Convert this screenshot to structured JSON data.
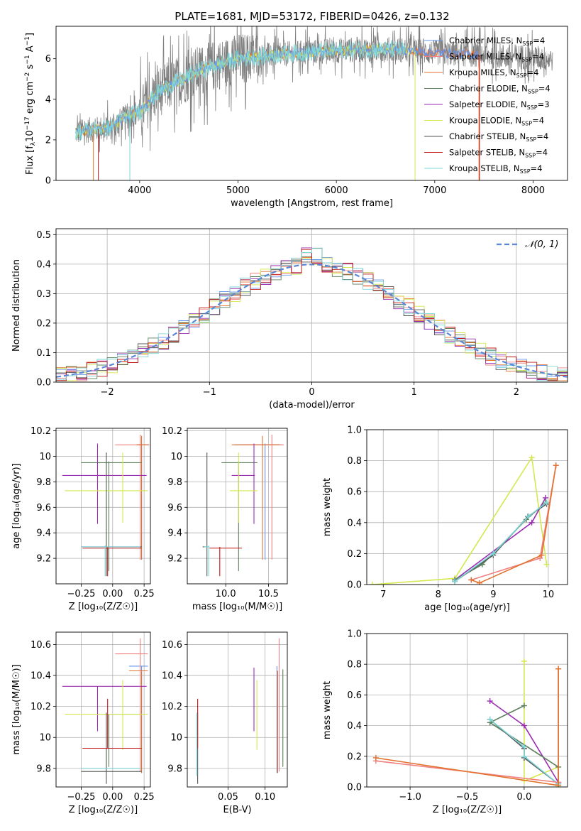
{
  "colors": {
    "chabrier_miles": "#6495ed",
    "salpeter_miles": "#f08080",
    "kroupa_miles": "#e2722e",
    "chabrier_elodie": "#5c7f5c",
    "salpeter_elodie": "#9b2db3",
    "kroupa_elodie": "#d4e84e",
    "chabrier_stelib": "#555555",
    "salpeter_stelib": "#c01818",
    "kroupa_stelib": "#7fd6d9",
    "data_grey": "#808080",
    "gauss": "#5b86d6"
  },
  "legend_models": [
    {
      "key": "chabrier_miles",
      "label": "Chabrier MILES, N",
      "sub": "SSP",
      "val": "=4"
    },
    {
      "key": "salpeter_miles",
      "label": "Salpeter MILES, N",
      "sub": "SSP",
      "val": "=4"
    },
    {
      "key": "kroupa_miles",
      "label": "Kroupa MILES, N",
      "sub": "SSP",
      "val": "=4"
    },
    {
      "key": "chabrier_elodie",
      "label": "Chabrier ELODIE, N",
      "sub": "SSP",
      "val": "=4"
    },
    {
      "key": "salpeter_elodie",
      "label": "Salpeter ELODIE, N",
      "sub": "SSP",
      "val": "=3"
    },
    {
      "key": "kroupa_elodie",
      "label": "Kroupa ELODIE, N",
      "sub": "SSP",
      "val": "=4"
    },
    {
      "key": "chabrier_stelib",
      "label": "Chabrier STELIB, N",
      "sub": "SSP",
      "val": "=4"
    },
    {
      "key": "salpeter_stelib",
      "label": "Salpeter STELIB, N",
      "sub": "SSP",
      "val": "=4"
    },
    {
      "key": "kroupa_stelib",
      "label": "Kroupa STELIB, N",
      "sub": "SSP",
      "val": "=4"
    }
  ],
  "chart_data": [
    {
      "id": "spectrum",
      "type": "line",
      "title": "PLATE=1681, MJD=53172, FIBERID=0426, z=0.132",
      "xlabel": "wavelength [Angstrom, rest frame]",
      "ylabel_parts": [
        "Flux [f",
        "λ",
        "10",
        "−17",
        " erg cm",
        "−2",
        " s",
        "−1",
        " A",
        "−1",
        "]"
      ],
      "xlim": [
        3150,
        8350
      ],
      "ylim": [
        0,
        7.6
      ],
      "xticks": [
        4000,
        5000,
        6000,
        7000,
        8000
      ],
      "yticks": [
        0,
        2,
        4,
        6
      ],
      "continuum": [
        [
          3350,
          2.35
        ],
        [
          3500,
          2.5
        ],
        [
          3700,
          2.6
        ],
        [
          3850,
          3.1
        ],
        [
          4000,
          3.4
        ],
        [
          4200,
          4.4
        ],
        [
          4400,
          4.9
        ],
        [
          4600,
          5.4
        ],
        [
          4800,
          5.7
        ],
        [
          5000,
          6.0
        ],
        [
          5400,
          6.2
        ],
        [
          5800,
          6.35
        ],
        [
          6200,
          6.45
        ],
        [
          6600,
          6.45
        ],
        [
          7000,
          6.3
        ],
        [
          7400,
          6.2
        ],
        [
          7800,
          6.1
        ],
        [
          8200,
          6.0
        ]
      ]
    },
    {
      "id": "residuals",
      "type": "histogram",
      "xlabel": "(data-model)/error",
      "ylabel": "Normed distribution",
      "xlim": [
        -2.5,
        2.5
      ],
      "ylim": [
        0,
        0.52
      ],
      "xticks": [
        -2,
        -1,
        0,
        1,
        2
      ],
      "xtick_labels": [
        "−2",
        "−1",
        "0",
        "1",
        "2"
      ],
      "yticks": [
        0,
        0.1,
        0.2,
        0.3,
        0.4,
        0.5
      ],
      "ytick_labels": [
        "0.0",
        "0.1",
        "0.2",
        "0.3",
        "0.4",
        "0.5"
      ],
      "legend": "𝒩(0, 1)"
    },
    {
      "id": "z_age",
      "type": "errorbar",
      "xlabel": "Z [log₁₀(Z/Z☉)]",
      "ylabel": "age  [log₁₀(age/yr)]",
      "xlim": [
        -0.45,
        0.3
      ],
      "ylim": [
        9.0,
        10.22
      ],
      "xticks": [
        -0.25,
        0.0,
        0.25
      ],
      "xtick_labels": [
        "−0.25",
        "0.00",
        "0.25"
      ],
      "yticks": [
        9.2,
        9.4,
        9.6,
        9.8,
        10.0,
        10.2
      ],
      "series": [
        {
          "key": "chabrier_miles",
          "x": 0.23,
          "y": 10.09,
          "x_err": [
            0.04,
            0.06
          ],
          "y_err": [
            0.9,
            0.01
          ]
        },
        {
          "key": "salpeter_miles",
          "x": 0.22,
          "y": 10.09,
          "x_err": [
            0.2,
            0.06
          ],
          "y_err": [
            0.9,
            0.08
          ]
        },
        {
          "key": "kroupa_miles",
          "x": 0.23,
          "y": 10.09,
          "x_err": [
            0.04,
            0.06
          ],
          "y_err": [
            0.9,
            0.07
          ]
        },
        {
          "key": "chabrier_elodie",
          "x": -0.03,
          "y": 9.95,
          "x_err": [
            0.22,
            0.26
          ],
          "y_err": [
            0.85,
            0.01
          ]
        },
        {
          "key": "salpeter_elodie",
          "x": -0.12,
          "y": 9.85,
          "x_err": [
            0.28,
            0.39
          ],
          "y_err": [
            0.38,
            0.25
          ]
        },
        {
          "key": "kroupa_elodie",
          "x": 0.08,
          "y": 9.73,
          "x_err": [
            0.46,
            0.2
          ],
          "y_err": [
            0.25,
            0.3
          ]
        },
        {
          "key": "chabrier_stelib",
          "x": -0.05,
          "y": 9.29,
          "x_err": [
            0.2,
            0.28
          ],
          "y_err": [
            0.23,
            0.74
          ]
        },
        {
          "key": "salpeter_stelib",
          "x": -0.04,
          "y": 9.28,
          "x_err": [
            0.2,
            0.27
          ],
          "y_err": [
            0.22,
            0.01
          ]
        },
        {
          "key": "kroupa_stelib",
          "x": -0.06,
          "y": 9.29,
          "x_err": [
            0.19,
            0.28
          ],
          "y_err": [
            0.23,
            0.01
          ]
        }
      ]
    },
    {
      "id": "mass_age",
      "type": "errorbar",
      "xlabel": "mass [log₁₀(M/M☉)]",
      "ylabel": "",
      "xlim": [
        9.55,
        10.72
      ],
      "ylim": [
        9.0,
        10.22
      ],
      "xticks": [
        10.0,
        10.5
      ],
      "xtick_labels": [
        "10.0",
        "10.5"
      ],
      "yticks": [
        9.2,
        9.4,
        9.6,
        9.8,
        10.0,
        10.2
      ],
      "series": [
        {
          "key": "chabrier_miles",
          "x": 10.46,
          "y": 10.09,
          "x_err": [
            0.36,
            0.2
          ],
          "y_err": [
            0.9,
            0.01
          ]
        },
        {
          "key": "salpeter_miles",
          "x": 10.54,
          "y": 10.09,
          "x_err": [
            0.36,
            0.14
          ],
          "y_err": [
            0.9,
            0.08
          ]
        },
        {
          "key": "kroupa_miles",
          "x": 10.43,
          "y": 10.09,
          "x_err": [
            0.36,
            0.2
          ],
          "y_err": [
            0.9,
            0.07
          ]
        },
        {
          "key": "chabrier_elodie",
          "x": 10.15,
          "y": 9.95,
          "x_err": [
            0.2,
            0.22
          ],
          "y_err": [
            0.85,
            0.01
          ]
        },
        {
          "key": "salpeter_elodie",
          "x": 10.33,
          "y": 9.85,
          "x_err": [
            0.26,
            0.01
          ],
          "y_err": [
            0.38,
            0.25
          ]
        },
        {
          "key": "kroupa_elodie",
          "x": 10.15,
          "y": 9.73,
          "x_err": [
            0.1,
            0.22
          ],
          "y_err": [
            0.25,
            0.3
          ]
        },
        {
          "key": "chabrier_stelib",
          "x": 9.78,
          "y": 9.29,
          "x_err": [
            0.05,
            0.01
          ],
          "y_err": [
            0.23,
            0.74
          ]
        },
        {
          "key": "salpeter_stelib",
          "x": 9.93,
          "y": 9.28,
          "x_err": [
            0.12,
            0.26
          ],
          "y_err": [
            0.22,
            0.01
          ]
        },
        {
          "key": "kroupa_stelib",
          "x": 9.8,
          "y": 9.29,
          "x_err": [
            0.05,
            0.01
          ],
          "y_err": [
            0.23,
            0.01
          ]
        }
      ]
    },
    {
      "id": "age_weight",
      "type": "line",
      "xlabel": "age  [log₁₀(age/yr)]",
      "ylabel": "mass weight",
      "xlim": [
        6.7,
        10.35
      ],
      "ylim": [
        0,
        1.0
      ],
      "xticks": [
        7,
        8,
        9,
        10
      ],
      "yticks": [
        0,
        0.2,
        0.4,
        0.6,
        0.8,
        1.0
      ],
      "ytick_labels": [
        "0.0",
        "0.2",
        "0.4",
        "0.6",
        "0.8",
        "1.0"
      ],
      "series": [
        {
          "key": "kroupa_elodie",
          "x": [
            6.8,
            8.3,
            9.7,
            9.97
          ],
          "y": [
            0.0,
            0.04,
            0.82,
            0.13
          ]
        },
        {
          "key": "salpeter_elodie",
          "x": [
            8.3,
            9.7,
            9.95
          ],
          "y": [
            0.03,
            0.4,
            0.56
          ]
        },
        {
          "key": "chabrier_elodie",
          "x": [
            8.3,
            8.8,
            9.6,
            9.95
          ],
          "y": [
            0.03,
            0.13,
            0.42,
            0.53
          ]
        },
        {
          "key": "chabrier_stelib",
          "x": [
            8.3,
            9.0,
            9.63,
            9.97
          ],
          "y": [
            0.02,
            0.19,
            0.44,
            0.52
          ]
        },
        {
          "key": "kroupa_stelib",
          "x": [
            8.3,
            9.0,
            9.64,
            9.97
          ],
          "y": [
            0.02,
            0.2,
            0.44,
            0.53
          ]
        },
        {
          "key": "salpeter_miles",
          "x": [
            8.6,
            9.85,
            10.14
          ],
          "y": [
            0.03,
            0.17,
            0.77
          ]
        },
        {
          "key": "kroupa_miles",
          "x": [
            8.6,
            8.75,
            9.88,
            10.14
          ],
          "y": [
            0.03,
            0.01,
            0.19,
            0.77
          ]
        }
      ]
    },
    {
      "id": "z_mass",
      "type": "errorbar",
      "xlabel": "Z [log₁₀(Z/Z☉)]",
      "ylabel": "mass [log₁₀(M/M☉)]",
      "xlim": [
        -0.45,
        0.3
      ],
      "ylim": [
        9.68,
        10.68
      ],
      "xticks": [
        -0.25,
        0.0,
        0.25
      ],
      "xtick_labels": [
        "−0.25",
        "0.00",
        "0.25"
      ],
      "yticks": [
        9.8,
        10.0,
        10.2,
        10.4,
        10.6
      ],
      "series": [
        {
          "key": "chabrier_miles",
          "x": 0.23,
          "y": 10.46,
          "x_err": [
            0.1,
            0.05
          ],
          "y_err": [
            0.69,
            0.0
          ]
        },
        {
          "key": "salpeter_miles",
          "x": 0.22,
          "y": 10.54,
          "x_err": [
            0.2,
            0.06
          ],
          "y_err": [
            0.76,
            0.1
          ]
        },
        {
          "key": "kroupa_miles",
          "x": 0.23,
          "y": 10.43,
          "x_err": [
            0.1,
            0.05
          ],
          "y_err": [
            0.66,
            0.0
          ]
        },
        {
          "key": "chabrier_elodie",
          "x": -0.03,
          "y": 10.15,
          "x_err": [
            0.05,
            0.26
          ],
          "y_err": [
            0.34,
            0.0
          ]
        },
        {
          "key": "salpeter_elodie",
          "x": -0.12,
          "y": 10.33,
          "x_err": [
            0.28,
            0.39
          ],
          "y_err": [
            0.29,
            0.0
          ]
        },
        {
          "key": "kroupa_elodie",
          "x": 0.08,
          "y": 10.15,
          "x_err": [
            0.46,
            0.2
          ],
          "y_err": [
            0.23,
            0.22
          ]
        },
        {
          "key": "chabrier_stelib",
          "x": -0.05,
          "y": 9.78,
          "x_err": [
            0.2,
            0.28
          ],
          "y_err": [
            0.08,
            0.38
          ]
        },
        {
          "key": "salpeter_stelib",
          "x": -0.04,
          "y": 9.93,
          "x_err": [
            0.2,
            0.27
          ],
          "y_err": [
            0.0,
            0.32
          ]
        },
        {
          "key": "kroupa_stelib",
          "x": -0.06,
          "y": 9.8,
          "x_err": [
            0.19,
            0.28
          ],
          "y_err": [
            0.0,
            0.0
          ]
        }
      ]
    },
    {
      "id": "ebv_mass",
      "type": "errorbar",
      "xlabel": "E(B-V)",
      "ylabel": "",
      "xlim": [
        -0.005,
        0.13
      ],
      "ylim": [
        9.68,
        10.68
      ],
      "xticks": [
        0.05,
        0.1
      ],
      "xtick_labels": [
        "0.05",
        "0.10"
      ],
      "yticks": [
        9.8,
        10.0,
        10.2,
        10.4,
        10.6
      ],
      "series": [
        {
          "key": "chabrier_miles",
          "x": 0.116,
          "y": 10.46,
          "y_err": [
            0.69,
            0.0
          ]
        },
        {
          "key": "salpeter_miles",
          "x": 0.119,
          "y": 10.54,
          "y_err": [
            0.76,
            0.1
          ]
        },
        {
          "key": "kroupa_miles",
          "x": 0.117,
          "y": 10.43,
          "y_err": [
            0.66,
            0.0
          ]
        },
        {
          "key": "chabrier_elodie",
          "x": 0.124,
          "y": 10.15,
          "y_err": [
            0.34,
            0.29
          ]
        },
        {
          "key": "salpeter_elodie",
          "x": 0.085,
          "y": 10.33,
          "y_err": [
            0.29,
            0.12
          ]
        },
        {
          "key": "kroupa_elodie",
          "x": 0.089,
          "y": 10.15,
          "y_err": [
            0.23,
            0.22
          ]
        },
        {
          "key": "chabrier_stelib",
          "x": 0.009,
          "y": 9.78,
          "y_err": [
            0.08,
            0.38
          ]
        },
        {
          "key": "salpeter_stelib",
          "x": 0.009,
          "y": 9.93,
          "y_err": [
            0.0,
            0.32
          ]
        },
        {
          "key": "kroupa_stelib",
          "x": 0.008,
          "y": 9.8,
          "y_err": [
            0.05,
            0.36
          ]
        }
      ]
    },
    {
      "id": "z_weight",
      "type": "line",
      "xlabel": "Z [log₁₀(Z/Z☉)]",
      "ylabel": "mass weight",
      "xlim": [
        -1.38,
        0.38
      ],
      "ylim": [
        0,
        1.0
      ],
      "xticks": [
        -1.0,
        -0.5,
        0.0
      ],
      "xtick_labels": [
        "−1.0",
        "−0.5",
        "0.0"
      ],
      "yticks": [
        0,
        0.2,
        0.4,
        0.6,
        0.8,
        1.0
      ],
      "ytick_labels": [
        "0.0",
        "0.2",
        "0.4",
        "0.6",
        "0.8",
        "1.0"
      ],
      "series": [
        {
          "key": "kroupa_elodie",
          "x": [
            0.0,
            0.0,
            0.3,
            0.3
          ],
          "y": [
            0.82,
            0.04,
            0.13,
            0.0
          ]
        },
        {
          "key": "salpeter_elodie",
          "x": [
            -0.3,
            0.0,
            0.3
          ],
          "y": [
            0.56,
            0.4,
            0.03
          ]
        },
        {
          "key": "chabrier_elodie",
          "x": [
            0.0,
            -0.3,
            0.3,
            0.3
          ],
          "y": [
            0.53,
            0.42,
            0.13,
            0.03
          ]
        },
        {
          "key": "chabrier_stelib",
          "x": [
            -0.3,
            0.0,
            0.0,
            0.3
          ],
          "y": [
            0.44,
            0.25,
            0.19,
            0.02
          ]
        },
        {
          "key": "kroupa_stelib",
          "x": [
            -0.3,
            0.0,
            0.0,
            0.3
          ],
          "y": [
            0.44,
            0.26,
            0.2,
            0.02
          ]
        },
        {
          "key": "salpeter_miles",
          "x": [
            -1.3,
            0.3,
            0.3
          ],
          "y": [
            0.17,
            0.03,
            0.77
          ]
        },
        {
          "key": "kroupa_miles",
          "x": [
            -1.3,
            0.3,
            0.3
          ],
          "y": [
            0.19,
            0.01,
            0.77
          ]
        }
      ]
    }
  ]
}
